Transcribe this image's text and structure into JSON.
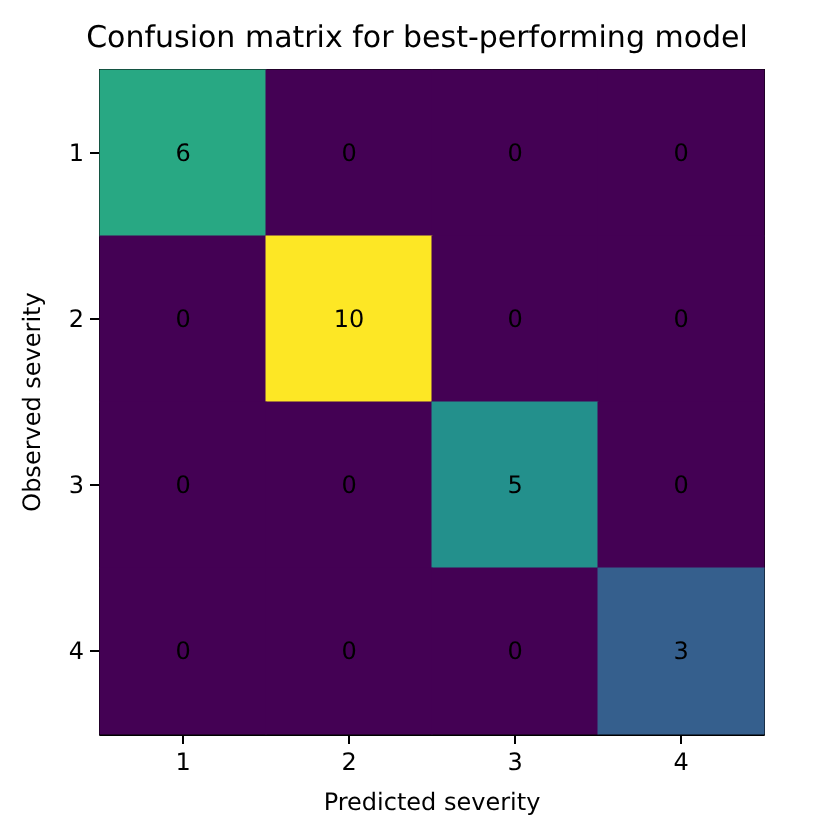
{
  "chart_data": {
    "type": "heatmap",
    "title": "Confusion matrix for best-performing model",
    "xlabel": "Predicted severity",
    "ylabel": "Observed severity",
    "categories": [
      "1",
      "2",
      "3",
      "4"
    ],
    "y_categories": [
      "1",
      "2",
      "3",
      "4"
    ],
    "cells": [
      [
        6,
        0,
        0,
        0
      ],
      [
        0,
        10,
        0,
        0
      ],
      [
        0,
        0,
        5,
        0
      ],
      [
        0,
        0,
        0,
        3
      ]
    ],
    "data_labels": true
  }
}
